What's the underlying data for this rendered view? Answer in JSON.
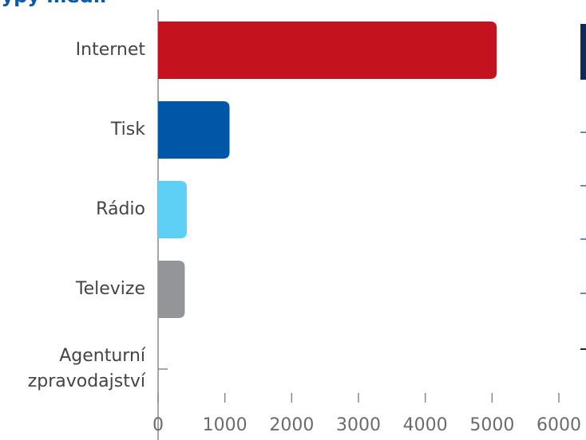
{
  "chart_data": {
    "type": "bar",
    "orientation": "horizontal",
    "title": "Typy médií",
    "categories": [
      "Internet",
      "Tisk",
      "Rádio",
      "Televize",
      "Agenturní\nzpravodajství"
    ],
    "values": [
      5070,
      1070,
      430,
      400,
      0
    ],
    "colors": [
      "#c4121e",
      "#0057a8",
      "#5ecff5",
      "#939598",
      "#939598"
    ],
    "xlim": [
      0,
      6000
    ],
    "xticks": [
      0,
      1000,
      2000,
      3000,
      4000,
      5000,
      6000
    ]
  }
}
